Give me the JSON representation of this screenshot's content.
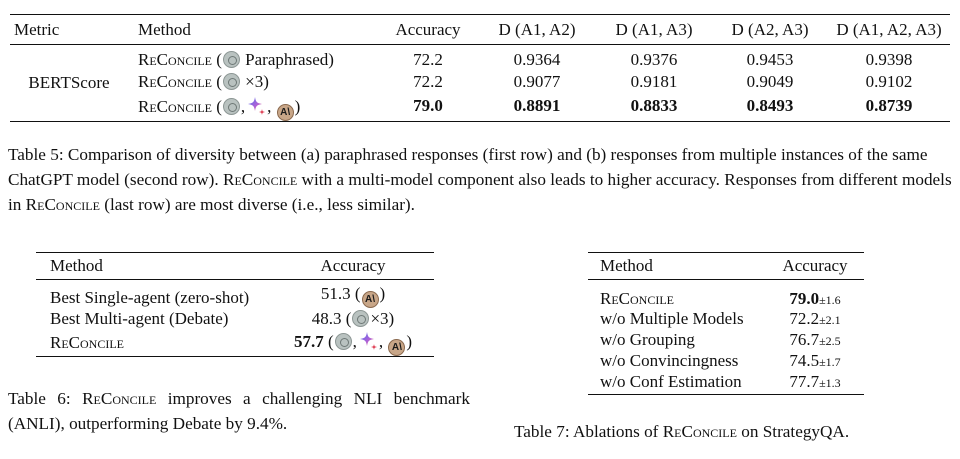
{
  "table5": {
    "headers": [
      "Metric",
      "Method",
      "Accuracy",
      "D (A1, A2)",
      "D (A1, A3)",
      "D (A2, A3)",
      "D (A1, A2, A3)"
    ],
    "metric": "BERTScore",
    "rows": [
      {
        "method": "ReConcile",
        "suffix_text": "Paraphrased)",
        "accuracy": "72.2",
        "d12": "0.9364",
        "d13": "0.9376",
        "d23": "0.9453",
        "d123": "0.9398"
      },
      {
        "method": "ReConcile",
        "suffix_text": "×3)",
        "accuracy": "72.2",
        "d12": "0.9077",
        "d13": "0.9181",
        "d23": "0.9049",
        "d123": "0.9102"
      },
      {
        "method": "ReConcile",
        "suffix_text": ")",
        "accuracy": "79.0",
        "d12": "0.8891",
        "d13": "0.8833",
        "d23": "0.8493",
        "d123": "0.8739"
      }
    ],
    "caption": {
      "part1": "Table 5: Comparison of diversity between (a) paraphrased responses (first row) and (b) responses from multiple instances of the same ChatGPT model (second row). ",
      "name1": "ReConcile",
      "part2": " with a multi-model component also leads to higher accuracy. Responses from different models in ",
      "name2": "ReConcile",
      "part3": " (last row) are most diverse (i.e., less similar)."
    }
  },
  "table6": {
    "headers": [
      "Method",
      "Accuracy"
    ],
    "rows": [
      {
        "method": "Best Single-agent (zero-shot)",
        "accuracy": "51.3",
        "suffix": ")"
      },
      {
        "method": "Best Multi-agent (Debate)",
        "accuracy": "48.3",
        "suffix": "×3)"
      },
      {
        "method": "ReConcile",
        "accuracy": "57.7",
        "suffix": ")"
      }
    ],
    "caption": {
      "part1": "Table 6: ",
      "name": "ReConcile",
      "part2": " improves a challenging NLI benchmark (ANLI), outperforming Debate by 9.4%."
    }
  },
  "table7": {
    "headers": [
      "Method",
      "Accuracy"
    ],
    "rows": [
      {
        "method": "ReConcile",
        "accuracy": "79.0",
        "pm": "±1.6"
      },
      {
        "method": "w/o Multiple Models",
        "accuracy": "72.2",
        "pm": "±2.1"
      },
      {
        "method": "w/o Grouping",
        "accuracy": "76.7",
        "pm": "±2.5"
      },
      {
        "method": "w/o Convincingness",
        "accuracy": "74.5",
        "pm": "±1.7"
      },
      {
        "method": "w/o Conf Estimation",
        "accuracy": "77.7",
        "pm": "±1.3"
      }
    ],
    "caption": {
      "part1": "Table 7: Ablations of ",
      "name": "ReConcile",
      "part2": " on StrategyQA."
    }
  },
  "icons": {
    "chatgpt": "chatgpt-icon",
    "gemini": "gemini-sparkle-icon",
    "claude": "claude-icon"
  },
  "colors": {
    "claude_icon": "#c8a688",
    "gemini_blue": "#4a6cf0",
    "gemini_purple": "#b061d6",
    "gemini_red": "#e0475b"
  }
}
